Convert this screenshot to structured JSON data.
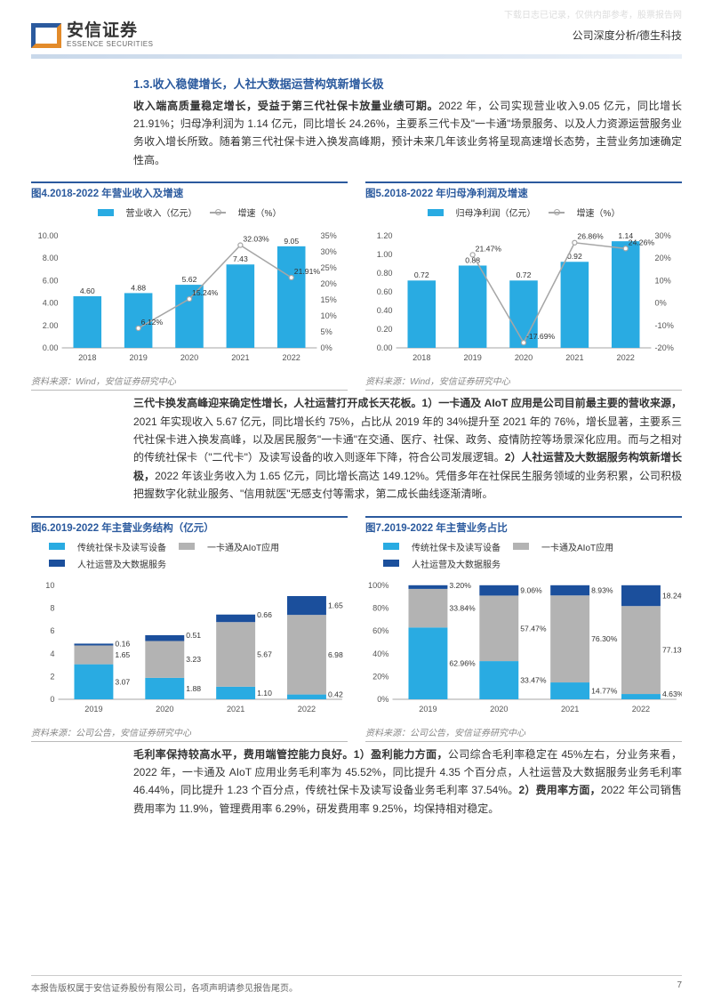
{
  "watermark": "下载日志已记录，仅供内部参考，股票报告网",
  "header": {
    "logo_cn": "安信证券",
    "logo_en": "ESSENCE SECURITIES",
    "doc_type": "公司深度分析/德生科技"
  },
  "section": {
    "title": "1.3.收入稳健增长，人社大数据运营构筑新增长极",
    "para1_bold": "收入端高质量稳定增长，受益于第三代社保卡放量业绩可期。",
    "para1_rest": "2022 年，公司实现营业收入9.05 亿元，同比增长 21.91%；归母净利润为 1.14 亿元，同比增长 24.26%，主要系三代卡及\"一卡通\"场景服务、以及人力资源运营服务业务收入增长所致。随着第三代社保卡进入换发高峰期，预计未来几年该业务将呈现高速增长态势，主营业务加速确定性高。",
    "para2_bold": "三代卡换发高峰迎来确定性增长，人社运营打开成长天花板。1）一卡通及 AIoT 应用是公司目前最主要的营收来源，",
    "para2_rest": "2021 年实现收入 5.67 亿元，同比增长约 75%，占比从 2019 年的 34%提升至 2021 年的 76%，增长显著，主要系三代社保卡进入换发高峰，以及居民服务\"一卡通\"在交通、医疗、社保、政务、疫情防控等场景深化应用。而与之相对的传统社保卡（\"二代卡\"）及读写设备的收入则逐年下降，符合公司发展逻辑。",
    "para2_bold2": "2）人社运营及大数据服务构筑新增长极，",
    "para2_rest2": "2022 年该业务收入为 1.65 亿元，同比增长高达 149.12%。凭借多年在社保民生服务领域的业务积累，公司积极把握数字化就业服务、\"信用就医\"无感支付等需求，第二成长曲线逐渐清晰。",
    "para3_bold": "毛利率保持较高水平，费用端管控能力良好。1）盈利能力方面，",
    "para3_rest": "公司综合毛利率稳定在 45%左右，分业务来看，2022 年，一卡通及 AIoT 应用业务毛利率为 45.52%，同比提升 4.35 个百分点，人社运营及大数据服务业务毛利率 46.44%，同比提升 1.23 个百分点，传统社保卡及读写设备业务毛利率 37.54%。",
    "para3_bold2": "2）费用率方面，",
    "para3_rest2": "2022 年公司销售费用率为 11.9%，管理费用率 6.29%，研发费用率 9.25%，均保持相对稳定。"
  },
  "chart4": {
    "title": "图4.2018-2022 年营业收入及增速",
    "legend_bar": "营业收入（亿元）",
    "legend_line": "增速（%）",
    "years": [
      "2018",
      "2019",
      "2020",
      "2021",
      "2022"
    ],
    "values": [
      4.6,
      4.88,
      5.62,
      7.43,
      9.05
    ],
    "growth": [
      null,
      6.12,
      15.24,
      32.03,
      21.91
    ],
    "y_left_max": 10,
    "y_left_step": 2,
    "y_right_max": 35,
    "y_right_step": 5,
    "bar_color": "#29abe2",
    "line_color": "#a6a6a6",
    "source": "资料来源：Wind，安信证券研究中心"
  },
  "chart5": {
    "title": "图5.2018-2022 年归母净利润及增速",
    "legend_bar": "归母净利润（亿元）",
    "legend_line": "增速（%）",
    "years": [
      "2018",
      "2019",
      "2020",
      "2021",
      "2022"
    ],
    "values": [
      0.72,
      0.88,
      0.72,
      0.92,
      1.14
    ],
    "growth": [
      null,
      21.47,
      -17.69,
      26.86,
      24.26
    ],
    "y_left_max": 1.2,
    "y_left_step": 0.2,
    "y_right_min": -20,
    "y_right_max": 30,
    "y_right_step": 10,
    "bar_color": "#29abe2",
    "line_color": "#a6a6a6",
    "source": "资料来源：Wind，安信证券研究中心"
  },
  "chart6": {
    "title": "图6.2019-2022 年主营业务结构（亿元）",
    "legend1": "传统社保卡及读写设备",
    "legend2": "一卡通及AIoT应用",
    "legend3": "人社运营及大数据服务",
    "years": [
      "2019",
      "2020",
      "2021",
      "2022"
    ],
    "series1": [
      3.07,
      1.88,
      1.1,
      0.42
    ],
    "series2": [
      1.65,
      3.23,
      5.67,
      6.98
    ],
    "series3": [
      0.16,
      0.51,
      0.66,
      1.65
    ],
    "y_max": 10,
    "y_step": 2,
    "colors": [
      "#29abe2",
      "#b3b3b3",
      "#1b4f9c"
    ],
    "source": "资料来源：公司公告，安信证券研究中心"
  },
  "chart7": {
    "title": "图7.2019-2022 年主营业务占比",
    "legend1": "传统社保卡及读写设备",
    "legend2": "一卡通及AIoT应用",
    "legend3": "人社运营及大数据服务",
    "years": [
      "2019",
      "2020",
      "2021",
      "2022"
    ],
    "series1": [
      62.96,
      33.47,
      14.77,
      4.63
    ],
    "series2": [
      33.84,
      57.47,
      76.3,
      77.13
    ],
    "series3": [
      3.2,
      9.06,
      8.93,
      18.24
    ],
    "y_max": 100,
    "y_step": 20,
    "colors": [
      "#29abe2",
      "#b3b3b3",
      "#1b4f9c"
    ],
    "source": "资料来源：公司公告，安信证券研究中心"
  },
  "footer": {
    "copyright": "本报告版权属于安信证券股份有限公司，各项声明请参见报告尾页。",
    "page": "7"
  }
}
